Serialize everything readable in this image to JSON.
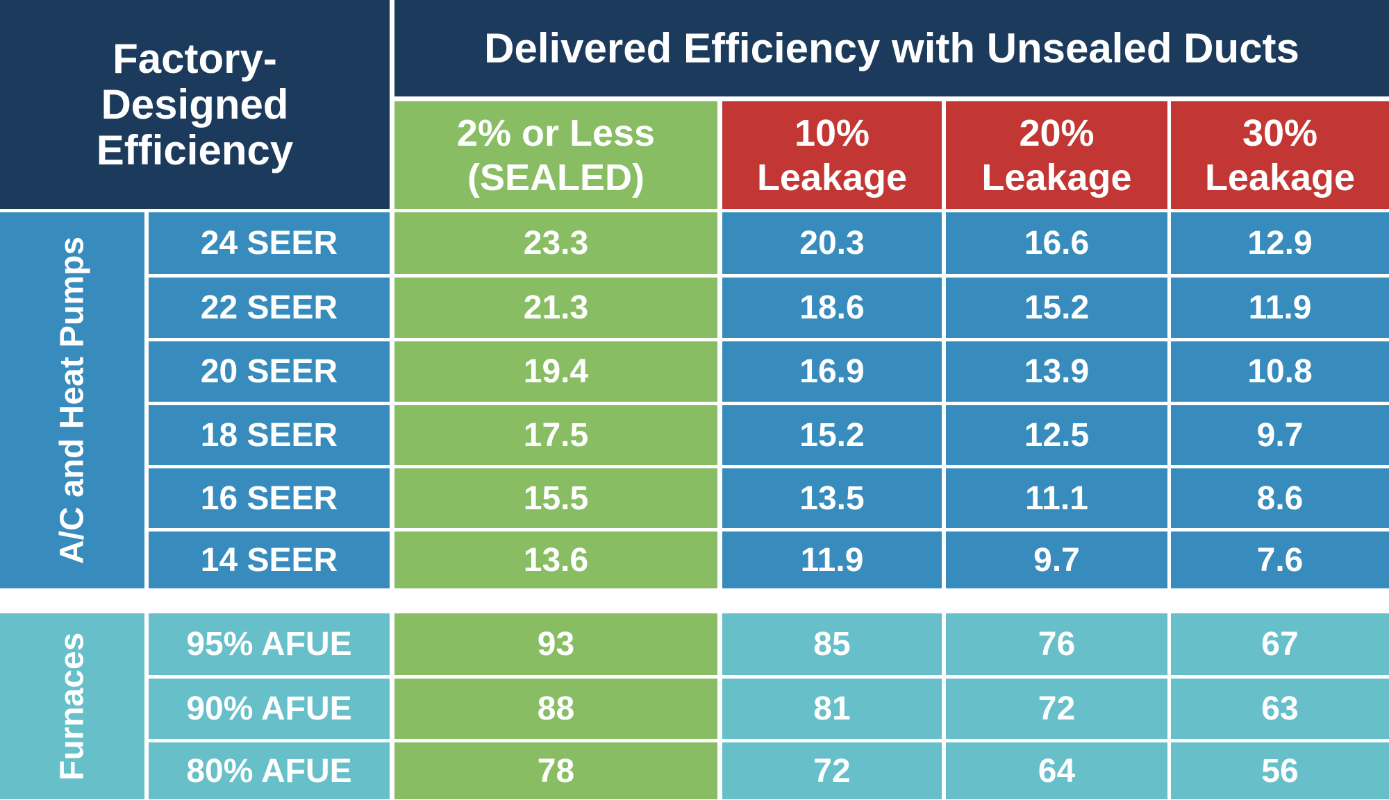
{
  "header": {
    "left_title": "Factory-Designed Efficiency",
    "top_title": "Delivered Efficiency with Unsealed Ducts",
    "columns": [
      "2% or Less (SEALED)",
      "10% Leakage",
      "20% Leakage",
      "30% Leakage"
    ]
  },
  "groups": [
    {
      "label": "A/C and Heat Pumps",
      "rows": [
        {
          "rating": "24 SEER",
          "values": [
            "23.3",
            "20.3",
            "16.6",
            "12.9"
          ]
        },
        {
          "rating": "22 SEER",
          "values": [
            "21.3",
            "18.6",
            "15.2",
            "11.9"
          ]
        },
        {
          "rating": "20 SEER",
          "values": [
            "19.4",
            "16.9",
            "13.9",
            "10.8"
          ]
        },
        {
          "rating": "18 SEER",
          "values": [
            "17.5",
            "15.2",
            "12.5",
            "9.7"
          ]
        },
        {
          "rating": "16 SEER",
          "values": [
            "15.5",
            "13.5",
            "11.1",
            "8.6"
          ]
        },
        {
          "rating": "14 SEER",
          "values": [
            "13.6",
            "11.9",
            "9.7",
            "7.6"
          ]
        }
      ]
    },
    {
      "label": "Furnaces",
      "rows": [
        {
          "rating": "95% AFUE",
          "values": [
            "93",
            "85",
            "76",
            "67"
          ]
        },
        {
          "rating": "90% AFUE",
          "values": [
            "88",
            "81",
            "72",
            "63"
          ]
        },
        {
          "rating": "80% AFUE",
          "values": [
            "78",
            "72",
            "64",
            "56"
          ]
        }
      ]
    }
  ],
  "colors": {
    "navy": "#1b3a5c",
    "blue": "#388cbd",
    "green": "#88bd63",
    "red": "#c23733",
    "teal": "#66bfc9"
  }
}
